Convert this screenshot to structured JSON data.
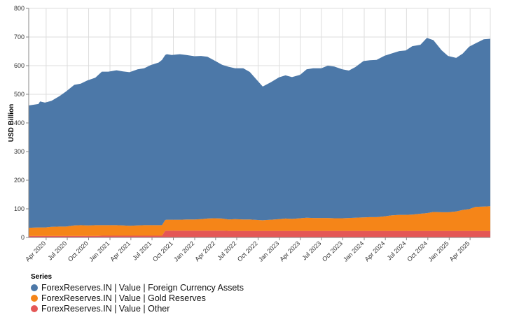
{
  "chart_data": {
    "type": "area",
    "stacked": true,
    "xlabel": "",
    "ylabel": "USD Billion",
    "ylim": [
      0,
      800
    ],
    "yticks": [
      0,
      100,
      200,
      300,
      400,
      500,
      600,
      700,
      800
    ],
    "xlim": [
      "2020-01-17",
      "2025-06-27"
    ],
    "xticks": [
      "Apr 2020",
      "Jul 2020",
      "Oct 2020",
      "Jan 2021",
      "Apr 2021",
      "Jul 2021",
      "Oct 2021",
      "Jan 2022",
      "Apr 2022",
      "Jul 2022",
      "Oct 2022",
      "Jan 2023",
      "Apr 2023",
      "Jul 2023",
      "Oct 2023",
      "Jan 2024",
      "Apr 2024",
      "Jul 2024",
      "Oct 2024",
      "Jan 2025",
      "Apr 2025"
    ],
    "xtick_dates": [
      "2020-04-01",
      "2020-07-01",
      "2020-10-01",
      "2021-01-01",
      "2021-04-01",
      "2021-07-01",
      "2021-10-01",
      "2022-01-01",
      "2022-04-01",
      "2022-07-01",
      "2022-10-01",
      "2023-01-01",
      "2023-04-01",
      "2023-07-01",
      "2023-10-01",
      "2024-01-01",
      "2024-04-01",
      "2024-07-01",
      "2024-10-01",
      "2025-01-01",
      "2025-04-01"
    ],
    "grid": true,
    "legend_placement": "bottom-left",
    "legend_title": "Series",
    "x": [
      "2020-01-17",
      "2020-02-28",
      "2020-03-06",
      "2020-03-27",
      "2020-04-24",
      "2020-05-29",
      "2020-06-26",
      "2020-07-31",
      "2020-08-28",
      "2020-09-25",
      "2020-10-30",
      "2020-11-27",
      "2020-12-25",
      "2021-01-29",
      "2021-02-26",
      "2021-03-26",
      "2021-04-30",
      "2021-05-28",
      "2021-06-25",
      "2021-07-30",
      "2021-08-13",
      "2021-08-27",
      "2021-09-03",
      "2021-09-24",
      "2021-10-29",
      "2021-11-26",
      "2021-12-31",
      "2022-01-28",
      "2022-02-25",
      "2022-03-25",
      "2022-04-29",
      "2022-05-27",
      "2022-06-24",
      "2022-07-29",
      "2022-08-26",
      "2022-09-30",
      "2022-10-21",
      "2022-11-25",
      "2022-12-30",
      "2023-01-27",
      "2023-02-24",
      "2023-03-31",
      "2023-04-28",
      "2023-05-26",
      "2023-06-30",
      "2023-07-28",
      "2023-08-25",
      "2023-09-29",
      "2023-10-27",
      "2023-11-24",
      "2023-12-29",
      "2024-01-26",
      "2024-02-23",
      "2024-03-29",
      "2024-04-26",
      "2024-05-31",
      "2024-06-28",
      "2024-07-26",
      "2024-08-30",
      "2024-09-27",
      "2024-10-25",
      "2024-11-29",
      "2024-12-27",
      "2025-01-31",
      "2025-02-28",
      "2025-03-28",
      "2025-04-25",
      "2025-05-30",
      "2025-06-27"
    ],
    "series": [
      {
        "name": "ForexReserves.IN | Value | Foreign Currency Assets",
        "color": "#4c78a8",
        "values": [
          427,
          431,
          440,
          436,
          440,
          456,
          472,
          491,
          494,
          506,
          515,
          536,
          536,
          541,
          538,
          536,
          545,
          548,
          559,
          568,
          577,
          576,
          578,
          575,
          578,
          574,
          570,
          570,
          565,
          552,
          537,
          533,
          527,
          528,
          515,
          485,
          467,
          480,
          495,
          500,
          495,
          501,
          518,
          523,
          523,
          532,
          530,
          520,
          515,
          526,
          546,
          548,
          549,
          561,
          565,
          572,
          574,
          588,
          590,
          612,
          600,
          566,
          546,
          536,
          546,
          567,
          571,
          584,
          585
        ]
      },
      {
        "name": "ForexReserves.IN | Value | Gold Reserves",
        "color": "#f58518",
        "values": [
          29,
          30,
          30,
          30,
          32,
          33,
          33,
          37,
          38,
          37,
          38,
          37,
          37,
          37,
          36,
          35,
          36,
          37,
          37,
          37,
          37,
          37,
          38,
          38,
          38,
          39,
          39,
          40,
          42,
          43,
          42,
          40,
          41,
          40,
          40,
          38,
          37,
          39,
          41,
          43,
          42,
          44,
          46,
          45,
          45,
          45,
          44,
          44,
          45,
          46,
          47,
          48,
          48,
          51,
          54,
          56,
          56,
          57,
          60,
          62,
          66,
          65,
          65,
          68,
          73,
          76,
          84,
          85,
          86
        ]
      },
      {
        "name": "ForexReserves.IN | Value | Other",
        "color": "#e45756",
        "values": [
          5,
          5,
          5,
          5,
          5,
          5,
          5,
          5,
          5,
          5,
          5,
          6,
          6,
          6,
          6,
          6,
          6,
          6,
          6,
          6,
          6,
          24,
          24,
          24,
          24,
          24,
          24,
          24,
          24,
          24,
          24,
          23,
          23,
          23,
          23,
          23,
          23,
          23,
          23,
          23,
          23,
          23,
          23,
          23,
          23,
          23,
          23,
          23,
          23,
          23,
          23,
          23,
          23,
          23,
          23,
          23,
          23,
          23,
          23,
          23,
          23,
          23,
          23,
          23,
          23,
          23,
          23,
          23,
          23
        ]
      }
    ]
  }
}
